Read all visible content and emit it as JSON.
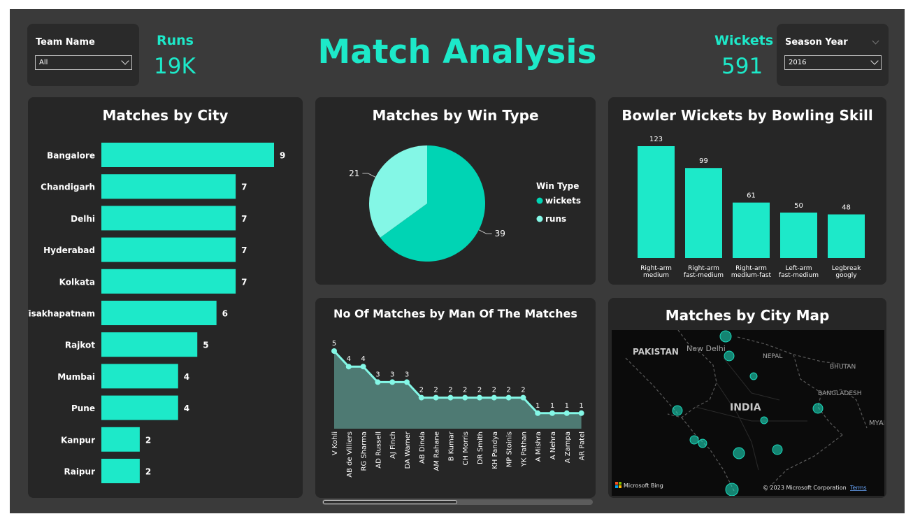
{
  "header": {
    "title": "Match Analysis",
    "runs_label": "Runs",
    "runs_value": "19K",
    "wickets_label": "Wickets",
    "wickets_value": "591"
  },
  "slicers": {
    "team": {
      "label": "Team Name",
      "value": "All"
    },
    "season": {
      "label": "Season Year",
      "value": "2016"
    }
  },
  "colors": {
    "accent": "#1de9c9",
    "accent_dark": "#00d4b4",
    "accent_light": "#84f7e6",
    "panel": "#262626",
    "background": "#3a3a3a",
    "area_fill": "#4e7a73"
  },
  "map": {
    "title": "Matches by City Map",
    "labels": [
      "PAKISTAN",
      "New Delhi",
      "NEPAL",
      "BHUTAN",
      "BANGLADESH",
      "INDIA",
      "MYAN"
    ],
    "attribution": "Microsoft Bing",
    "copyright": "© 2023 Microsoft Corporation",
    "terms": "Terms"
  },
  "chart_data": [
    {
      "type": "bar",
      "orientation": "horizontal",
      "title": "Matches by City",
      "categories": [
        "Bangalore",
        "Chandigarh",
        "Delhi",
        "Hyderabad",
        "Kolkata",
        "Visakhapatnam",
        "Rajkot",
        "Mumbai",
        "Pune",
        "Kanpur",
        "Raipur"
      ],
      "values": [
        9,
        7,
        7,
        7,
        7,
        6,
        5,
        4,
        4,
        2,
        2
      ],
      "xlim": [
        0,
        9
      ]
    },
    {
      "type": "pie",
      "title": "Matches by Win Type",
      "legend_title": "Win Type",
      "legend_position": "right",
      "slices": [
        {
          "label": "wickets",
          "value": 39,
          "color": "#00d4b4"
        },
        {
          "label": "runs",
          "value": 21,
          "color": "#84f7e6"
        }
      ]
    },
    {
      "type": "bar",
      "title": "Bowler Wickets by Bowling Skill",
      "categories": [
        [
          "Right-arm",
          "medium"
        ],
        [
          "Right-arm",
          "fast-medium"
        ],
        [
          "Right-arm",
          "medium-fast"
        ],
        [
          "Left-arm",
          "fast-medium"
        ],
        [
          "Legbreak",
          "googly"
        ]
      ],
      "values": [
        123,
        99,
        61,
        50,
        48
      ],
      "ylim": [
        0,
        123
      ]
    },
    {
      "type": "area",
      "title": "No Of Matches by Man Of The Matches",
      "categories": [
        "V Kohli",
        "AB de Villiers",
        "RG Sharma",
        "AD Russell",
        "AJ Finch",
        "DA Warner",
        "AB Dinda",
        "AM Rahane",
        "B Kumar",
        "CH Morris",
        "DR Smith",
        "KH Pandya",
        "MP Stoinis",
        "YK Pathan",
        "A Mishra",
        "A Nehra",
        "A Zampa",
        "AR Patel"
      ],
      "values": [
        5,
        4,
        4,
        3,
        3,
        3,
        2,
        2,
        2,
        2,
        2,
        2,
        2,
        2,
        1,
        1,
        1,
        1
      ],
      "ylim": [
        0,
        5
      ]
    }
  ]
}
